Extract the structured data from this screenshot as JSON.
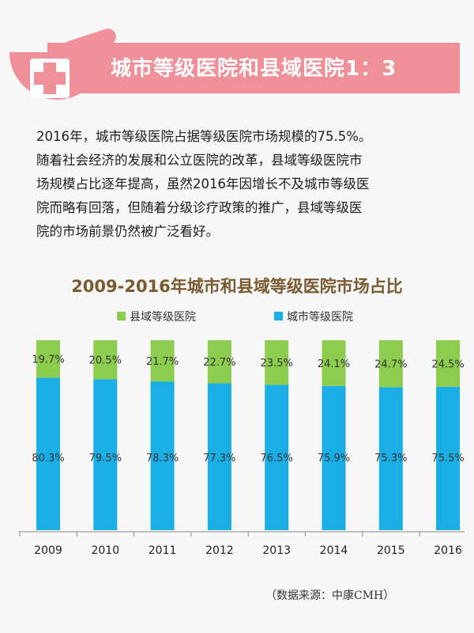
{
  "header": {
    "title": "城市等级医院和县域医院1：3",
    "icon": "medical-cross-icon",
    "accent_color": "#ef8f97"
  },
  "paragraph": {
    "lines": [
      "2016年，城市等级医院占据等级医院市场规模的75.5%。",
      "随着社会经济的发展和公立医院的改革，县域等级医院市",
      "场规模占比逐年提高，虽然2016年因增长不及城市等级医",
      "院而略有回落，但随着分级诊疗政策的推广，县域等级医",
      "院的市场前景仍然被广泛看好。"
    ]
  },
  "chart_data": {
    "type": "bar",
    "stacked": true,
    "title": "2009-2016年城市和县域等级医院市场占比",
    "categories": [
      "2009",
      "2010",
      "2011",
      "2012",
      "2013",
      "2014",
      "2015",
      "2016"
    ],
    "series": [
      {
        "name": "城市等级医院",
        "color": "#1aaee5",
        "values": [
          80.3,
          79.5,
          78.3,
          77.3,
          76.5,
          75.9,
          75.3,
          75.5
        ],
        "labels": [
          "80.3%",
          "79.5%",
          "78.3%",
          "77.3%",
          "76.5%",
          "75.9%",
          "75.3%",
          "75.5%"
        ]
      },
      {
        "name": "县域等级医院",
        "color": "#8ccc4f",
        "values": [
          19.7,
          20.5,
          21.7,
          22.7,
          23.5,
          24.1,
          24.7,
          24.5
        ],
        "labels": [
          "19.7%",
          "20.5%",
          "21.7%",
          "22.7%",
          "23.5%",
          "24.1%",
          "24.7%",
          "24.5%"
        ]
      }
    ],
    "legend": {
      "placement": "top",
      "order": [
        "县域等级医院",
        "城市等级医院"
      ]
    },
    "ylim": [
      0,
      100
    ],
    "grid": false
  },
  "source": "（数据来源：中康CMH）"
}
